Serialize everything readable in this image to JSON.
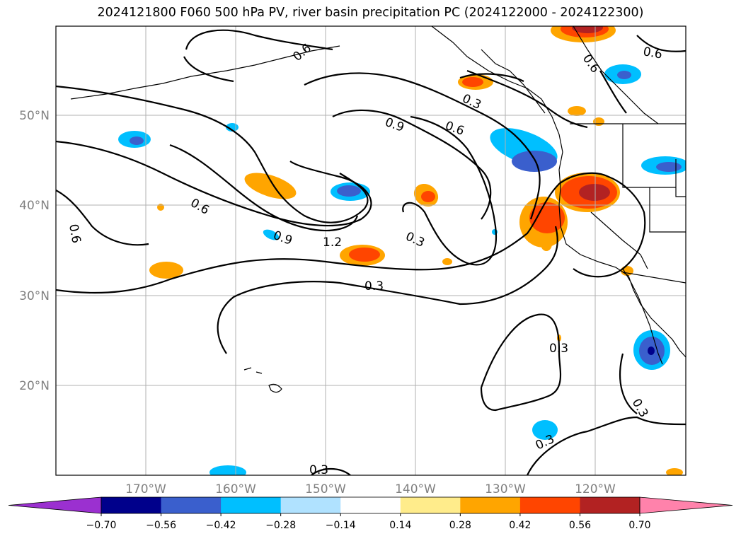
{
  "title": "2024121800 F060 500 hPa PV, river basin precipitation PC (2024122000 - 2024122300)",
  "map": {
    "lat_labels": [
      "50°N",
      "40°N",
      "30°N",
      "20°N"
    ],
    "lon_labels": [
      "170°W",
      "160°W",
      "150°W",
      "140°W",
      "130°W",
      "120°W"
    ]
  },
  "pv_contour_labels": [
    {
      "text": "0.6"
    },
    {
      "text": "0.6"
    },
    {
      "text": "0.6"
    },
    {
      "text": "0.6"
    },
    {
      "text": "0.6"
    },
    {
      "text": "0.9"
    },
    {
      "text": "0.9"
    },
    {
      "text": "1.2"
    },
    {
      "text": "0.3"
    },
    {
      "text": "0.3"
    },
    {
      "text": "0.3"
    },
    {
      "text": "0.3"
    },
    {
      "text": "0.3"
    },
    {
      "text": "0.3"
    },
    {
      "text": "0.3"
    },
    {
      "text": "0.6"
    }
  ],
  "colorbar": {
    "ticks": [
      "−0.70",
      "−0.56",
      "−0.42",
      "−0.28",
      "−0.14",
      "0.14",
      "0.28",
      "0.42",
      "0.56",
      "0.70"
    ],
    "colors": [
      "#9b30d0",
      "#00008b",
      "#3a5fcd",
      "#00bfff",
      "#b0e2ff",
      "#ffffff",
      "#ffec8b",
      "#ffa500",
      "#ff4500",
      "#b22222",
      "#ff82ab"
    ]
  }
}
